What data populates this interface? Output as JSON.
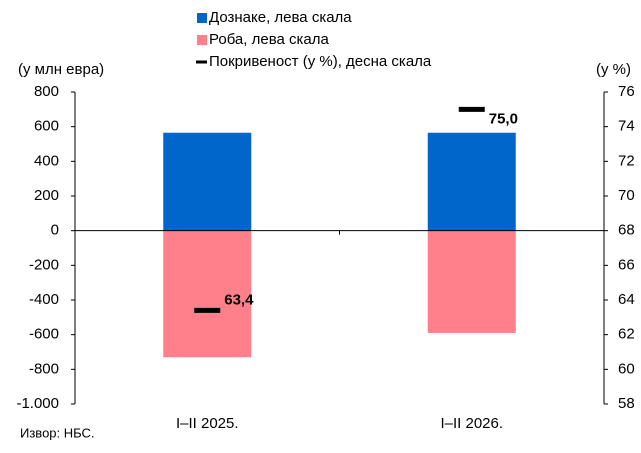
{
  "chart_data": {
    "type": "bar",
    "categories": [
      "I–II 2025.",
      "I–II 2026."
    ],
    "series": [
      {
        "name": "Дознаке, лева скала",
        "color": "#0066cc",
        "values": [
          565,
          565
        ]
      },
      {
        "name": "Роба, лева скала",
        "color": "#ff7f8a",
        "values": [
          -730,
          -590
        ]
      },
      {
        "name": "Покривеност (у %), десна скала",
        "color": "#000000",
        "axis": "y2",
        "type": "marker",
        "values": [
          63.4,
          75.0
        ],
        "value_labels": [
          "63,4",
          "75,0"
        ]
      }
    ],
    "ylabel": "(у млн евра)",
    "y2label": "(у %)",
    "ylim": [
      -1000,
      800
    ],
    "yticks": [
      {
        "value": -1000,
        "label": "-1.000"
      },
      -800,
      -600,
      -400,
      -200,
      0,
      200,
      400,
      600,
      800
    ],
    "y2lim": [
      58,
      76
    ],
    "y2ticks": [
      58,
      60,
      62,
      64,
      66,
      68,
      70,
      72,
      74,
      76
    ],
    "source": "Извор: НБС."
  }
}
